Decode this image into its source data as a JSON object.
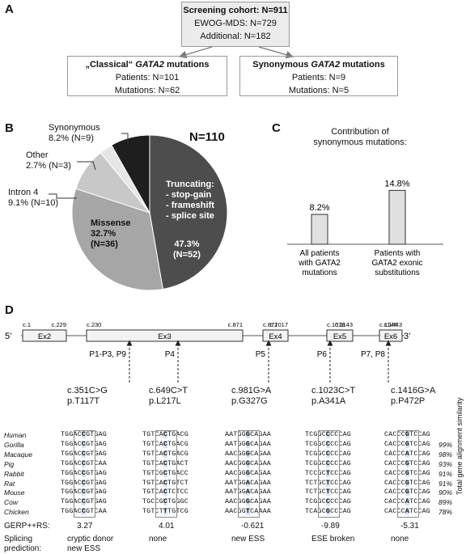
{
  "panelA": {
    "letter": "A",
    "screening": {
      "title": "Screening cohort: N=911",
      "line1": "EWOG-MDS: N=729",
      "line2": "Additional: N=182"
    },
    "classical": {
      "title_pre": "„Classical“ ",
      "title_gene": "GATA2",
      "title_post": " mutations",
      "line1": "Patients: N=101",
      "line2": "Mutations: N=62"
    },
    "synonymous": {
      "title_pre": "Synonymous ",
      "title_gene": "GATA2",
      "title_post": " mutations",
      "line1": "Patients: N=9",
      "line2": "Mutations: N=5"
    }
  },
  "panelB": {
    "letter": "B",
    "total": "N=110",
    "slices": [
      {
        "name": "Truncating",
        "percent": 47.3,
        "count": 52,
        "color": "#4d4d4d"
      },
      {
        "name": "Missense",
        "percent": 32.7,
        "count": 36,
        "color": "#a6a6a6"
      },
      {
        "name": "Intron 4",
        "percent": 9.1,
        "count": 10,
        "color": "#c8c8c8"
      },
      {
        "name": "Other",
        "percent": 2.7,
        "count": 3,
        "color": "#e6e6e6"
      },
      {
        "name": "Synonymous",
        "percent": 8.2,
        "count": 9,
        "color": "#1e1e1e"
      }
    ],
    "labels": {
      "truncating_title": "Truncating:",
      "truncating_1": "- stop-gain",
      "truncating_2": "- frameshift",
      "truncating_3": "- splice site",
      "truncating_pct": "47.3%",
      "truncating_n": "(N=52)",
      "missense_title": "Missense",
      "missense_pct": "32.7%",
      "missense_n": "(N=36)",
      "synonymous_name": "Synonymous",
      "synonymous_val": "8.2% (N=9)",
      "other_name": "Other",
      "other_val": "2.7% (N=3)",
      "intron_name": "Intron 4",
      "intron_val": "9.1% (N=10)"
    }
  },
  "panelC": {
    "letter": "C",
    "title1": "Contribution of",
    "title2": "synonymous mutations:",
    "chart_data": {
      "type": "bar",
      "categories": [
        "All patients with GATA2 mutations",
        "Patients with GATA2 exonic substitutions"
      ],
      "values": [
        8.2,
        14.8
      ],
      "value_labels": [
        "8.2%",
        "14.8%"
      ]
    },
    "cat1": [
      "All patients",
      "with GATA2",
      "mutations"
    ],
    "cat2": [
      "Patients with",
      "GATA2 exonic",
      "substitutions"
    ]
  },
  "panelD": {
    "letter": "D",
    "prime5": "5’",
    "prime3": "3’",
    "exons": [
      {
        "name": "Ex2",
        "start": "c.1",
        "end": "c.229"
      },
      {
        "name": "Ex3",
        "start": "c.230",
        "end": "c.871"
      },
      {
        "name": "Ex4",
        "start": "c.872",
        "end": "c.1017"
      },
      {
        "name": "Ex5",
        "start": "c.1018",
        "end": "c.1143"
      },
      {
        "name": "Ex6",
        "start": "c.1144",
        "end": "c.1443"
      }
    ],
    "patients": [
      "P1-P3, P9",
      "P4",
      "P5",
      "P6",
      "P7, P8"
    ],
    "mutations": [
      {
        "cdna": "c.351C>G",
        "protein": "p.T117T"
      },
      {
        "cdna": "c.649C>T",
        "protein": "p.L217L"
      },
      {
        "cdna": "c.981G>A",
        "protein": "p.G327G"
      },
      {
        "cdna": "c.1023C>T",
        "protein": "p.A341A"
      },
      {
        "cdna": "c.1416G>A",
        "protein": "p.P472P"
      }
    ],
    "species": [
      "Human",
      "Gorilla",
      "Macaque",
      "Pig",
      "Rabbit",
      "Rat",
      "Mouse",
      "Cow",
      "Chicken"
    ],
    "similarity": [
      "",
      "99%",
      "98%",
      "93%",
      "91%",
      "91%",
      "90%",
      "89%",
      "78%"
    ],
    "similarity_label": "Total gene alignment similarity",
    "alignments": [
      [
        [
          "TGGAC",
          "C",
          "GTGAG"
        ],
        [
          "TGGAC",
          "C",
          "GTGAG"
        ],
        [
          "TGGAC",
          "C",
          "GTGAG"
        ],
        [
          "TGGAC",
          "C",
          "GTCAA"
        ],
        [
          "TGGAC",
          "C",
          "GTGAG"
        ],
        [
          "TGGAC",
          "C",
          "GTGAG"
        ],
        [
          "TGGAC",
          "C",
          "GTGAG"
        ],
        [
          "TGGAC",
          "C",
          "GTGAG"
        ],
        [
          "TGGAC",
          "C",
          "GTCAA"
        ]
      ],
      [
        [
          "TGTCA",
          "C",
          "TGACG"
        ],
        [
          "TGTCA",
          "C",
          "TGACG"
        ],
        [
          "TGTCA",
          "C",
          "TGACG"
        ],
        [
          "TGTCA",
          "C",
          "TGACT"
        ],
        [
          "TGTCG",
          "C",
          "TGACC"
        ],
        [
          "TGTCA",
          "C",
          "TGTCT"
        ],
        [
          "TGTCA",
          "C",
          "TCTCC"
        ],
        [
          "TGCCG",
          "C",
          "TGGGC"
        ],
        [
          "TGTCT",
          "T",
          "TGTCG"
        ]
      ],
      [
        [
          "AATGG",
          "G",
          "CAGAA"
        ],
        [
          "AATGG",
          "G",
          "CAGAA"
        ],
        [
          "AACGG",
          "G",
          "CAGAA"
        ],
        [
          "AACGG",
          "G",
          "CAGAA"
        ],
        [
          "AACGG",
          "G",
          "CAGAA"
        ],
        [
          "AATGG",
          "A",
          "CAGAA"
        ],
        [
          "AATGG",
          "A",
          "CAGAA"
        ],
        [
          "AACGG",
          "G",
          "CAGAA"
        ],
        [
          "AACGG",
          "T",
          "CAAAA"
        ]
      ],
      [
        [
          "TCGGC",
          "C",
          "CCCAG"
        ],
        [
          "TCGGC",
          "C",
          "CCCAG"
        ],
        [
          "TCGGC",
          "C",
          "CCCAG"
        ],
        [
          "TCGGC",
          "C",
          "CCCAG"
        ],
        [
          "TCCGC",
          "T",
          "CCCAG"
        ],
        [
          "TCTGC",
          "T",
          "CCCAG"
        ],
        [
          "TCTGC",
          "T",
          "CCCAG"
        ],
        [
          "TCGGC",
          "C",
          "CCCAG"
        ],
        [
          "TCAGC",
          "G",
          "CCCAG"
        ]
      ],
      [
        [
          "CACCC",
          "G",
          "TCCAG"
        ],
        [
          "CACCC",
          "G",
          "TCCAG"
        ],
        [
          "CACCC",
          "A",
          "TCCAG"
        ],
        [
          "CACCC",
          "G",
          "TCCAG"
        ],
        [
          "CACCC",
          "G",
          "TCCAG"
        ],
        [
          "CACCC",
          "G",
          "TCCAG"
        ],
        [
          "CACCC",
          "G",
          "TCCAG"
        ],
        [
          "CACCC",
          "A",
          "TCCAG"
        ],
        [
          "CACCC",
          "A",
          "TCCAG"
        ]
      ]
    ],
    "gerp_label": "GERP++RS:",
    "gerp_values": [
      "3.27",
      "4.01",
      "-0.621",
      "-9.89",
      "-5.31"
    ],
    "splice_label1": "Splicing",
    "splice_label2": "prediction:",
    "splice_values": [
      [
        "cryptic donor",
        "new ESS"
      ],
      [
        "none"
      ],
      [
        "new ESS"
      ],
      [
        "ESE broken"
      ],
      [
        "none"
      ]
    ]
  }
}
